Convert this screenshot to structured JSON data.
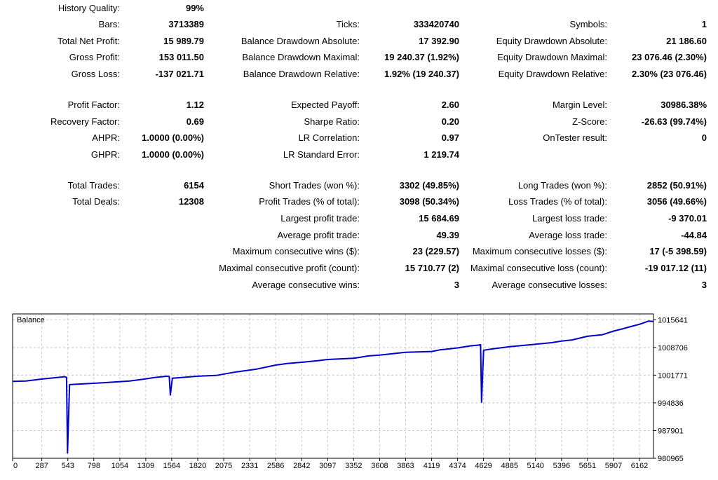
{
  "report": {
    "history_quality": {
      "label": "History Quality:",
      "value": "99%"
    },
    "rows": [
      [
        {
          "label": "Bars:",
          "value": "3713389"
        },
        {
          "label": "Ticks:",
          "value": "333420740"
        },
        {
          "label": "Symbols:",
          "value": "1"
        }
      ],
      [
        {
          "label": "Total Net Profit:",
          "value": "15 989.79"
        },
        {
          "label": "Balance Drawdown Absolute:",
          "value": "17 392.90"
        },
        {
          "label": "Equity Drawdown Absolute:",
          "value": "21 186.60"
        }
      ],
      [
        {
          "label": "Gross Profit:",
          "value": "153 011.50"
        },
        {
          "label": "Balance Drawdown Maximal:",
          "value": "19 240.37 (1.92%)"
        },
        {
          "label": "Equity Drawdown Maximal:",
          "value": "23 076.46 (2.30%)"
        }
      ],
      [
        {
          "label": "Gross Loss:",
          "value": "-137 021.71"
        },
        {
          "label": "Balance Drawdown Relative:",
          "value": "1.92% (19 240.37)"
        },
        {
          "label": "Equity Drawdown Relative:",
          "value": "2.30% (23 076.46)"
        }
      ],
      [
        {
          "label": "Profit Factor:",
          "value": "1.12"
        },
        {
          "label": "Expected Payoff:",
          "value": "2.60"
        },
        {
          "label": "Margin Level:",
          "value": "30986.38%"
        }
      ],
      [
        {
          "label": "Recovery Factor:",
          "value": "0.69"
        },
        {
          "label": "Sharpe Ratio:",
          "value": "0.20"
        },
        {
          "label": "Z-Score:",
          "value": "-26.63 (99.74%)"
        }
      ],
      [
        {
          "label": "AHPR:",
          "value": "1.0000 (0.00%)"
        },
        {
          "label": "LR Correlation:",
          "value": "0.97"
        },
        {
          "label": "OnTester result:",
          "value": "0"
        }
      ],
      [
        {
          "label": "GHPR:",
          "value": "1.0000 (0.00%)"
        },
        {
          "label": "LR Standard Error:",
          "value": "1 219.74"
        },
        null
      ],
      [
        {
          "label": "Total Trades:",
          "value": "6154"
        },
        {
          "label": "Short Trades (won %):",
          "value": "3302 (49.85%)"
        },
        {
          "label": "Long Trades (won %):",
          "value": "2852 (50.91%)"
        }
      ],
      [
        {
          "label": "Total Deals:",
          "value": "12308"
        },
        {
          "label": "Profit Trades (% of total):",
          "value": "3098 (50.34%)"
        },
        {
          "label": "Loss Trades (% of total):",
          "value": "3056 (49.66%)"
        }
      ],
      [
        null,
        {
          "label": "Largest profit trade:",
          "value": "15 684.69"
        },
        {
          "label": "Largest loss trade:",
          "value": "-9 370.01"
        }
      ],
      [
        null,
        {
          "label": "Average profit trade:",
          "value": "49.39"
        },
        {
          "label": "Average loss trade:",
          "value": "-44.84"
        }
      ],
      [
        null,
        {
          "label": "Maximum consecutive wins ($):",
          "value": "23 (229.57)"
        },
        {
          "label": "Maximum consecutive losses ($):",
          "value": "17 (-5 398.59)"
        }
      ],
      [
        null,
        {
          "label": "Maximal consecutive profit (count):",
          "value": "15 710.77 (2)"
        },
        {
          "label": "Maximal consecutive loss (count):",
          "value": "-19 017.12 (11)"
        }
      ],
      [
        null,
        {
          "label": "Average consecutive wins:",
          "value": "3"
        },
        {
          "label": "Average consecutive losses:",
          "value": "3"
        }
      ]
    ]
  },
  "chart_data": {
    "type": "line",
    "title": "Balance",
    "xlabel": "",
    "ylabel": "",
    "x_ticks": [
      0,
      287,
      543,
      798,
      1054,
      1309,
      1564,
      1820,
      2075,
      2331,
      2586,
      2842,
      3097,
      3352,
      3608,
      3863,
      4119,
      4374,
      4629,
      4885,
      5140,
      5396,
      5651,
      5907,
      6162
    ],
    "y_ticks": [
      980965,
      987901,
      994836,
      1001771,
      1008706,
      1015641
    ],
    "xlim": [
      0,
      6300
    ],
    "ylim": [
      980965,
      1017100
    ],
    "grid": true,
    "series": [
      {
        "values": [
          [
            0,
            1000200
          ],
          [
            130,
            1000300
          ],
          [
            290,
            1000800
          ],
          [
            480,
            1001300
          ],
          [
            510,
            1001400
          ],
          [
            530,
            1001200
          ],
          [
            540,
            982300
          ],
          [
            560,
            999400
          ],
          [
            700,
            999600
          ],
          [
            900,
            999900
          ],
          [
            1150,
            1000300
          ],
          [
            1300,
            1000800
          ],
          [
            1400,
            1001200
          ],
          [
            1520,
            1001500
          ],
          [
            1540,
            1001400
          ],
          [
            1550,
            996800
          ],
          [
            1570,
            1001000
          ],
          [
            1820,
            1001500
          ],
          [
            2000,
            1001700
          ],
          [
            2200,
            1002600
          ],
          [
            2400,
            1003300
          ],
          [
            2586,
            1004300
          ],
          [
            2700,
            1004700
          ],
          [
            2842,
            1005000
          ],
          [
            3000,
            1005400
          ],
          [
            3097,
            1005700
          ],
          [
            3352,
            1006000
          ],
          [
            3500,
            1006600
          ],
          [
            3608,
            1006800
          ],
          [
            3863,
            1007500
          ],
          [
            4119,
            1007700
          ],
          [
            4200,
            1008100
          ],
          [
            4374,
            1008600
          ],
          [
            4500,
            1009100
          ],
          [
            4580,
            1009300
          ],
          [
            4600,
            1009400
          ],
          [
            4610,
            995000
          ],
          [
            4630,
            1008000
          ],
          [
            4700,
            1008300
          ],
          [
            4885,
            1008900
          ],
          [
            5140,
            1009500
          ],
          [
            5300,
            1009900
          ],
          [
            5396,
            1010300
          ],
          [
            5500,
            1010600
          ],
          [
            5651,
            1011500
          ],
          [
            5800,
            1011900
          ],
          [
            5907,
            1012800
          ],
          [
            6000,
            1013400
          ],
          [
            6100,
            1014100
          ],
          [
            6162,
            1014500
          ],
          [
            6250,
            1015300
          ],
          [
            6300,
            1015200
          ]
        ]
      }
    ]
  },
  "colors": {
    "series": "#0000cc",
    "grid": "#c8c8c8",
    "frame": "#000000"
  }
}
